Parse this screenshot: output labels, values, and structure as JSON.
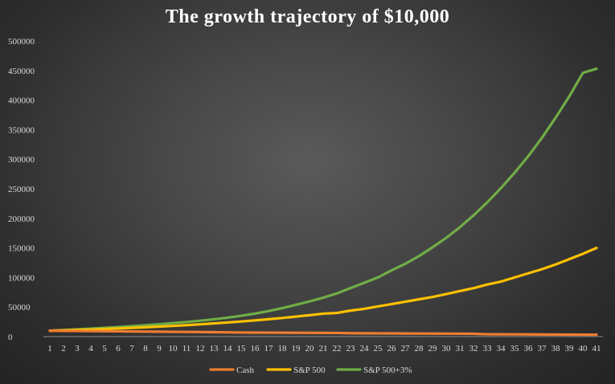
{
  "chart_data": {
    "type": "line",
    "title": "The growth trajectory of $10,000",
    "xlabel": "",
    "ylabel": "",
    "x": [
      1,
      2,
      3,
      4,
      5,
      6,
      7,
      8,
      9,
      10,
      11,
      12,
      13,
      14,
      15,
      16,
      17,
      18,
      19,
      20,
      21,
      22,
      23,
      24,
      25,
      26,
      27,
      28,
      29,
      30,
      31,
      32,
      33,
      34,
      35,
      36,
      37,
      38,
      39,
      40,
      41
    ],
    "ylim": [
      0,
      500000
    ],
    "yticks": [
      0,
      50000,
      100000,
      150000,
      200000,
      250000,
      300000,
      350000,
      400000,
      450000,
      500000
    ],
    "grid": false,
    "legend_position": "bottom",
    "series": [
      {
        "name": "Cash",
        "color": "#ed7d31",
        "values": [
          10000,
          9700,
          9500,
          9300,
          9100,
          8900,
          8700,
          8500,
          8300,
          8100,
          7900,
          7700,
          7500,
          7200,
          6900,
          6800,
          6700,
          6600,
          6500,
          6400,
          6300,
          6200,
          5800,
          5600,
          5500,
          5400,
          5300,
          5200,
          5100,
          5000,
          4900,
          4800,
          4000,
          3900,
          3800,
          3700,
          3600,
          3500,
          3400,
          3300,
          3200
        ]
      },
      {
        "name": "S&P 500",
        "color": "#ffc000",
        "values": [
          10000,
          10600,
          11300,
          12000,
          12900,
          13800,
          14800,
          15800,
          16900,
          18100,
          19400,
          20800,
          22300,
          23900,
          25600,
          27400,
          29400,
          31500,
          33800,
          36200,
          38800,
          40000,
          44000,
          47000,
          51000,
          55000,
          59000,
          63000,
          67000,
          72000,
          77000,
          82000,
          88000,
          93000,
          100000,
          107000,
          114000,
          122000,
          131000,
          140000,
          150000
        ]
      },
      {
        "name": "S&P 500+3%",
        "color": "#70ad47",
        "values": [
          10000,
          11000,
          12300,
          13500,
          14800,
          16200,
          17700,
          19200,
          21000,
          22800,
          24700,
          26900,
          29300,
          32000,
          35200,
          38900,
          43200,
          48200,
          53700,
          59500,
          65800,
          73000,
          82000,
          91000,
          100000,
          112000,
          123000,
          136000,
          151000,
          167000,
          185000,
          205000,
          227000,
          251000,
          277000,
          305000,
          336000,
          370000,
          406000,
          446000,
          453000
        ]
      }
    ]
  }
}
